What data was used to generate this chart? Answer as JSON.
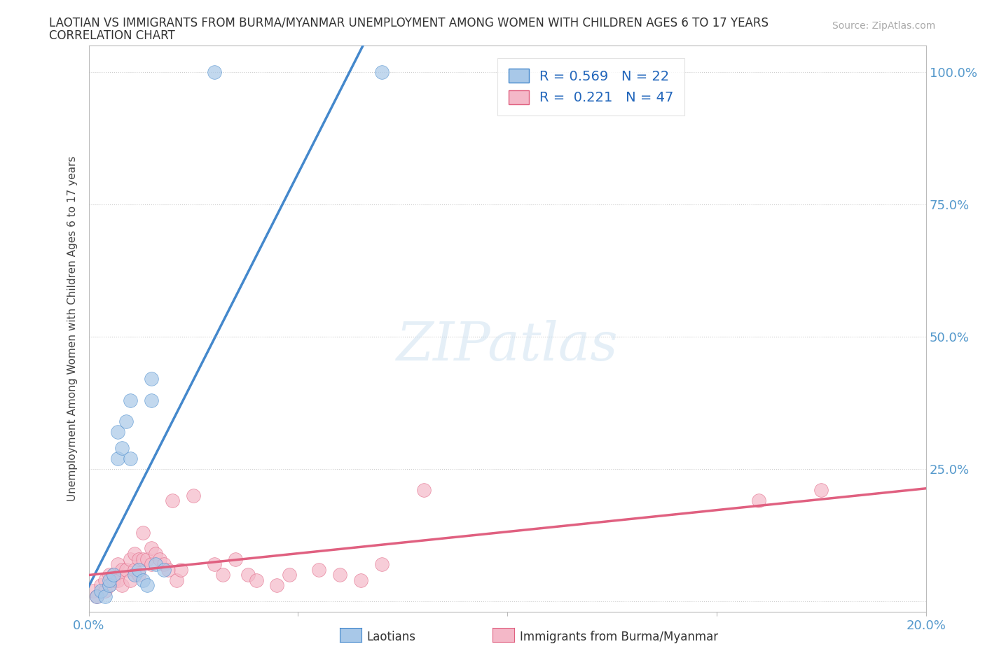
{
  "title_line1": "LAOTIAN VS IMMIGRANTS FROM BURMA/MYANMAR UNEMPLOYMENT AMONG WOMEN WITH CHILDREN AGES 6 TO 17 YEARS",
  "title_line2": "CORRELATION CHART",
  "source_text": "Source: ZipAtlas.com",
  "ylabel": "Unemployment Among Women with Children Ages 6 to 17 years",
  "xlim": [
    0.0,
    0.2
  ],
  "ylim": [
    -0.02,
    1.05
  ],
  "yticks": [
    0.0,
    0.25,
    0.5,
    0.75,
    1.0
  ],
  "xticks": [
    0.0,
    0.05,
    0.1,
    0.15,
    0.2
  ],
  "ytick_labels_right": [
    "",
    "25.0%",
    "50.0%",
    "75.0%",
    "100.0%"
  ],
  "xtick_labels": [
    "0.0%",
    "",
    "",
    "",
    "20.0%"
  ],
  "r_laotian": 0.569,
  "n_laotian": 22,
  "r_burma": 0.221,
  "n_burma": 47,
  "laotian_color": "#a8c8e8",
  "burma_color": "#f4b8c8",
  "laotian_line_color": "#4488cc",
  "burma_line_color": "#e06080",
  "watermark": "ZIPatlas",
  "legend_label_1": "Laotians",
  "legend_label_2": "Immigrants from Burma/Myanmar",
  "grid_color": "#cccccc",
  "background_color": "#ffffff",
  "tick_color": "#5599cc",
  "axis_color": "#bbbbbb"
}
